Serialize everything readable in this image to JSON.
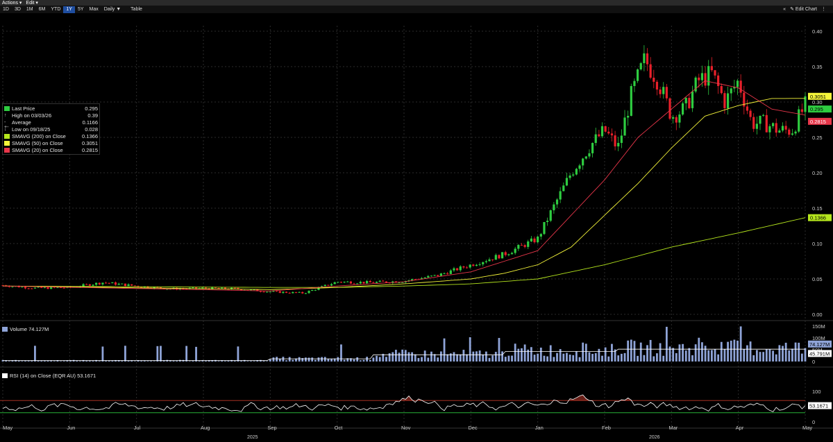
{
  "menu": {
    "actions": "Actions ▾",
    "edit": "Edit ▾"
  },
  "toolbar": {
    "timeframes": [
      "1D",
      "3D",
      "1M",
      "6M",
      "YTD",
      "1Y",
      "5Y",
      "Max"
    ],
    "active": "1Y",
    "interval": "Daily ▼",
    "table": "Table",
    "collapse": "«",
    "edit_chart": "✎ Edit Chart",
    "menu_icon": "⋮"
  },
  "legend": [
    {
      "label": "Last Price",
      "value": "0.295",
      "color": "#2ecc40",
      "icon": "square"
    },
    {
      "label": "High on 03/03/26",
      "value": "0.39",
      "color": "#cccccc",
      "icon": "up-arrow"
    },
    {
      "label": "Average",
      "value": "0.1166",
      "color": "#cccccc",
      "icon": "dash"
    },
    {
      "label": "Low on 09/18/25",
      "value": "0.028",
      "color": "#cccccc",
      "icon": "down-arrow"
    },
    {
      "label": "SMAVG (200)  on Close",
      "value": "0.1366",
      "color": "#b5e61d",
      "icon": "square"
    },
    {
      "label": "SMAVG (50)  on Close",
      "value": "0.3051",
      "color": "#f5f53a",
      "icon": "square"
    },
    {
      "label": "SMAVG (20)  on Close",
      "value": "0.2815",
      "color": "#e8364a",
      "icon": "square"
    }
  ],
  "volume_label": "Volume  74.127M",
  "rsi_label": "RSI (14)  on Close (EQR AU)  53.1671",
  "price_axis": [
    "0.40",
    "0.35",
    "0.30",
    "0.25",
    "0.20",
    "0.15",
    "0.10",
    "0.05",
    "0.00"
  ],
  "volume_axis": [
    "150M",
    "100M",
    "50M",
    "0"
  ],
  "rsi_axis": [
    "100",
    "0"
  ],
  "tags": {
    "price_sma50": "0.3051",
    "price_last": "0.295",
    "price_sma20": "0.2815",
    "price_sma200": "0.1366",
    "vol_last": "74.127M",
    "vol_avg": "45.791M",
    "rsi_last": "53.1671"
  },
  "months": [
    "May",
    "Jun",
    "Jul",
    "Aug",
    "Sep",
    "Oct",
    "Nov",
    "Dec",
    "Jan",
    "Feb",
    "Mar",
    "Apr",
    "May"
  ],
  "years": [
    "2025",
    "2026"
  ],
  "colors": {
    "up": "#2ecc40",
    "down": "#e8202a",
    "sma20": "#e8364a",
    "sma50": "#f5f53a",
    "sma200": "#b5e61d",
    "volume": "#8fa4d8",
    "rsi_band": "#c0392b"
  },
  "chart_data": {
    "type": "candlestick",
    "x_range": [
      "2025-05",
      "2026-05"
    ],
    "ylim": [
      0,
      0.4
    ],
    "price_series": {
      "name": "Last Price",
      "x_months": [
        0,
        0.5,
        1,
        1.5,
        2,
        2.5,
        3,
        3.5,
        4,
        4.5,
        5,
        5.5,
        6,
        6.5,
        7,
        7.5,
        8,
        8.2,
        8.5,
        8.8,
        9,
        9.2,
        9.4,
        9.6,
        9.8,
        10,
        10.2,
        10.4,
        10.6,
        10.8,
        11,
        11.2,
        11.4,
        11.6,
        11.8,
        12
      ],
      "close": [
        0.041,
        0.037,
        0.038,
        0.045,
        0.04,
        0.036,
        0.037,
        0.036,
        0.032,
        0.03,
        0.046,
        0.045,
        0.047,
        0.055,
        0.07,
        0.085,
        0.107,
        0.145,
        0.2,
        0.24,
        0.26,
        0.235,
        0.31,
        0.36,
        0.33,
        0.28,
        0.29,
        0.33,
        0.34,
        0.3,
        0.33,
        0.27,
        0.27,
        0.26,
        0.26,
        0.295
      ]
    },
    "sma20": {
      "x_months": [
        0,
        4,
        5,
        6,
        7,
        7.5,
        8,
        8.5,
        9,
        9.5,
        10,
        10.5,
        11,
        11.5,
        12
      ],
      "values": [
        0.04,
        0.033,
        0.04,
        0.046,
        0.06,
        0.075,
        0.09,
        0.14,
        0.19,
        0.25,
        0.29,
        0.33,
        0.32,
        0.29,
        0.2815
      ]
    },
    "sma50": {
      "x_months": [
        0,
        4,
        5,
        6,
        7,
        7.5,
        8,
        8.5,
        9,
        9.5,
        10,
        10.5,
        11,
        11.5,
        12
      ],
      "values": [
        0.04,
        0.035,
        0.038,
        0.043,
        0.05,
        0.058,
        0.07,
        0.095,
        0.14,
        0.185,
        0.235,
        0.28,
        0.295,
        0.305,
        0.3051
      ]
    },
    "sma200": {
      "x_months": [
        0,
        4,
        5,
        6,
        7,
        8,
        9,
        10,
        11,
        12
      ],
      "values": [
        0.04,
        0.038,
        0.038,
        0.04,
        0.043,
        0.05,
        0.07,
        0.095,
        0.115,
        0.1366
      ]
    },
    "volume_ylim": [
      0,
      150
    ],
    "rsi_ylim": [
      0,
      100
    ],
    "rsi_bands": [
      70,
      30
    ],
    "rsi_last": 53.1671
  }
}
